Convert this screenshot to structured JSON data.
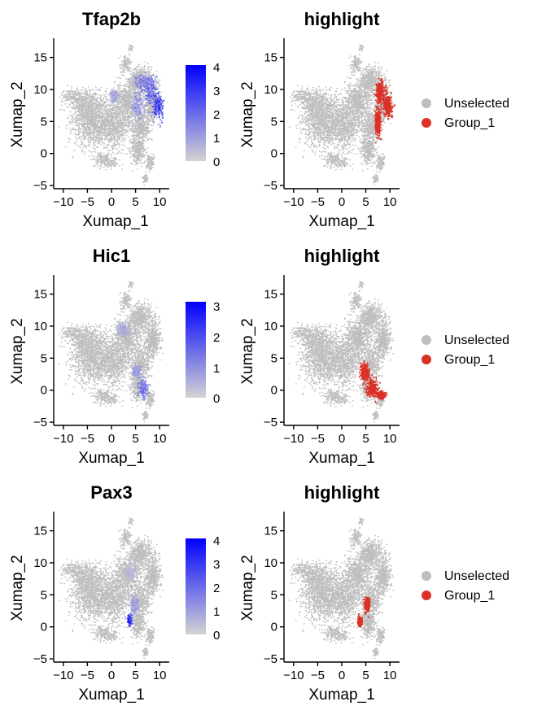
{
  "figure": {
    "panels": [
      {
        "title": "Tfap2b",
        "xlabel": "Xumap_1",
        "ylabel": "Xumap_2",
        "legend_ticks": [
          "4",
          "3",
          "2",
          "1",
          "0"
        ]
      },
      {
        "title": "highlight",
        "xlabel": "Xumap_1",
        "ylabel": "Xumap_2",
        "legend_items": [
          "Unselected",
          "Group_1"
        ]
      },
      {
        "title": "Hic1",
        "xlabel": "Xumap_1",
        "ylabel": "Xumap_2",
        "legend_ticks": [
          "3",
          "2",
          "1",
          "0"
        ]
      },
      {
        "title": "highlight",
        "xlabel": "Xumap_1",
        "ylabel": "Xumap_2",
        "legend_items": [
          "Unselected",
          "Group_1"
        ]
      },
      {
        "title": "Pax3",
        "xlabel": "Xumap_1",
        "ylabel": "Xumap_2",
        "legend_ticks": [
          "4",
          "3",
          "2",
          "1",
          "0"
        ]
      },
      {
        "title": "highlight",
        "xlabel": "Xumap_1",
        "ylabel": "Xumap_2",
        "legend_items": [
          "Unselected",
          "Group_1"
        ]
      }
    ],
    "x_ticks": [
      "−10",
      "−5",
      "0",
      "5",
      "10"
    ],
    "y_ticks": [
      "15",
      "10",
      "5",
      "0",
      "−5"
    ]
  },
  "colors": {
    "background_cells": "#bebebe",
    "expression_low": "#d3d3d3",
    "expression_high": "#0000ff",
    "highlight": "#dc3127",
    "unselected": "#bebebe"
  },
  "chart_data": [
    {
      "type": "scatter",
      "subtype": "umap-feature-plot",
      "title": "Tfap2b",
      "xlabel": "Xumap_1",
      "ylabel": "Xumap_2",
      "xlim": [
        -12,
        12
      ],
      "ylim": [
        -5.5,
        18
      ],
      "x_ticks": [
        -10,
        -5,
        0,
        5,
        10
      ],
      "y_ticks": [
        -5,
        0,
        5,
        10,
        15
      ],
      "colorbar": {
        "min": 0,
        "max": 4,
        "ticks": [
          0,
          1,
          2,
          3,
          4
        ]
      },
      "expression_regions": [
        {
          "x": 9.7,
          "y": 7.2,
          "sx": 1.1,
          "sy": 2.2,
          "level": 2.8
        },
        {
          "x": 8.0,
          "y": 10.0,
          "sx": 1.4,
          "sy": 2.0,
          "level": 2.2
        },
        {
          "x": 6.5,
          "y": 11.0,
          "sx": 2.0,
          "sy": 1.2,
          "level": 1.5
        },
        {
          "x": 5.5,
          "y": 7.5,
          "sx": 1.2,
          "sy": 2.0,
          "level": 1.2
        },
        {
          "x": 0.5,
          "y": 9.0,
          "sx": 0.8,
          "sy": 1.0,
          "level": 0.8
        }
      ]
    },
    {
      "type": "scatter",
      "subtype": "umap-highlight-plot",
      "title": "highlight",
      "xlabel": "Xumap_1",
      "ylabel": "Xumap_2",
      "xlim": [
        -12,
        12
      ],
      "ylim": [
        -5.5,
        18
      ],
      "x_ticks": [
        -10,
        -5,
        0,
        5,
        10
      ],
      "y_ticks": [
        -5,
        0,
        5,
        10,
        15
      ],
      "legend": [
        "Unselected",
        "Group_1"
      ],
      "legend_position": "right",
      "highlight_regions": [
        {
          "x": 9.6,
          "y": 7.4,
          "sx": 0.9,
          "sy": 1.6
        },
        {
          "x": 8.0,
          "y": 9.5,
          "sx": 0.9,
          "sy": 1.8
        },
        {
          "x": 7.5,
          "y": 5.0,
          "sx": 0.6,
          "sy": 2.2
        }
      ]
    },
    {
      "type": "scatter",
      "subtype": "umap-feature-plot",
      "title": "Hic1",
      "xlabel": "Xumap_1",
      "ylabel": "Xumap_2",
      "xlim": [
        -12,
        12
      ],
      "ylim": [
        -5.5,
        18
      ],
      "x_ticks": [
        -10,
        -5,
        0,
        5,
        10
      ],
      "y_ticks": [
        -5,
        0,
        5,
        10,
        15
      ],
      "colorbar": {
        "min": 0,
        "max": 3,
        "ticks": [
          0,
          1,
          2,
          3
        ]
      },
      "expression_regions": [
        {
          "x": 6.6,
          "y": 0.4,
          "sx": 1.0,
          "sy": 1.5,
          "level": 1.4
        },
        {
          "x": 5.2,
          "y": 2.8,
          "sx": 0.8,
          "sy": 1.0,
          "level": 0.8
        },
        {
          "x": 2.5,
          "y": 9.5,
          "sx": 1.2,
          "sy": 1.0,
          "level": 0.6
        }
      ]
    },
    {
      "type": "scatter",
      "subtype": "umap-highlight-plot",
      "title": "highlight",
      "xlabel": "Xumap_1",
      "ylabel": "Xumap_2",
      "xlim": [
        -12,
        12
      ],
      "ylim": [
        -5.5,
        18
      ],
      "x_ticks": [
        -10,
        -5,
        0,
        5,
        10
      ],
      "y_ticks": [
        -5,
        0,
        5,
        10,
        15
      ],
      "legend": [
        "Unselected",
        "Group_1"
      ],
      "legend_position": "right",
      "highlight_regions": [
        {
          "x": 6.5,
          "y": 0.3,
          "sx": 1.2,
          "sy": 1.3
        },
        {
          "x": 4.8,
          "y": 2.8,
          "sx": 0.8,
          "sy": 1.3
        },
        {
          "x": 8.2,
          "y": -0.8,
          "sx": 0.8,
          "sy": 0.5
        }
      ]
    },
    {
      "type": "scatter",
      "subtype": "umap-feature-plot",
      "title": "Pax3",
      "xlabel": "Xumap_1",
      "ylabel": "Xumap_2",
      "xlim": [
        -12,
        12
      ],
      "ylim": [
        -5.5,
        18
      ],
      "x_ticks": [
        -10,
        -5,
        0,
        5,
        10
      ],
      "y_ticks": [
        -5,
        0,
        5,
        10,
        15
      ],
      "colorbar": {
        "min": 0,
        "max": 4,
        "ticks": [
          0,
          1,
          2,
          3,
          4
        ]
      },
      "expression_regions": [
        {
          "x": 3.8,
          "y": 1.1,
          "sx": 0.45,
          "sy": 0.7,
          "level": 3.2
        },
        {
          "x": 4.8,
          "y": 3.5,
          "sx": 0.8,
          "sy": 1.2,
          "level": 1.0
        },
        {
          "x": 4.0,
          "y": 8.5,
          "sx": 1.0,
          "sy": 1.0,
          "level": 0.5
        }
      ]
    },
    {
      "type": "scatter",
      "subtype": "umap-highlight-plot",
      "title": "highlight",
      "xlabel": "Xumap_1",
      "ylabel": "Xumap_2",
      "xlim": [
        -12,
        12
      ],
      "ylim": [
        -5.5,
        18
      ],
      "x_ticks": [
        -10,
        -5,
        0,
        5,
        10
      ],
      "y_ticks": [
        -5,
        0,
        5,
        10,
        15
      ],
      "legend": [
        "Unselected",
        "Group_1"
      ],
      "legend_position": "right",
      "highlight_regions": [
        {
          "x": 3.8,
          "y": 0.8,
          "sx": 0.4,
          "sy": 0.6
        },
        {
          "x": 5.3,
          "y": 3.4,
          "sx": 0.5,
          "sy": 1.1
        }
      ]
    }
  ]
}
